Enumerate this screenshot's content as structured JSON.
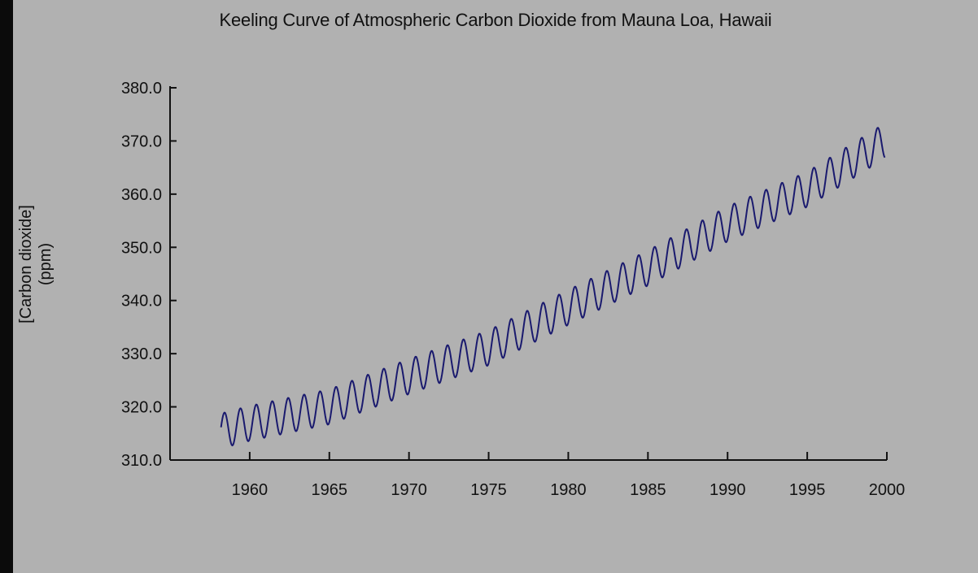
{
  "chart_data": {
    "type": "line",
    "title": "Keeling Curve of Atmospheric Carbon Dioxide from Mauna Loa, Hawaii",
    "ylabel_lines": [
      "[Carbon dioxide]",
      "(ppm)"
    ],
    "xlabel": "",
    "xlim": [
      1955,
      2000
    ],
    "ylim": [
      310,
      380
    ],
    "x_ticks": [
      1960,
      1965,
      1970,
      1975,
      1980,
      1985,
      1990,
      1995,
      2000
    ],
    "y_ticks": [
      "310.0",
      "320.0",
      "330.0",
      "340.0",
      "350.0",
      "360.0",
      "370.0",
      "380.0"
    ],
    "grid": false,
    "series": [
      {
        "color": "#1a1a6e",
        "x_start": 1958.2,
        "x_end": 1999.9,
        "points_per_year": 12,
        "annual_mean_anchors": [
          [
            1958,
            315.3
          ],
          [
            1960,
            316.9
          ],
          [
            1965,
            320.0
          ],
          [
            1970,
            325.7
          ],
          [
            1975,
            331.1
          ],
          [
            1980,
            338.7
          ],
          [
            1985,
            346.1
          ],
          [
            1990,
            354.4
          ],
          [
            1995,
            360.9
          ],
          [
            1999,
            368.4
          ]
        ],
        "seasonal_amplitude_ppm": 3.3,
        "seasonal_peak_month": 5
      }
    ]
  }
}
